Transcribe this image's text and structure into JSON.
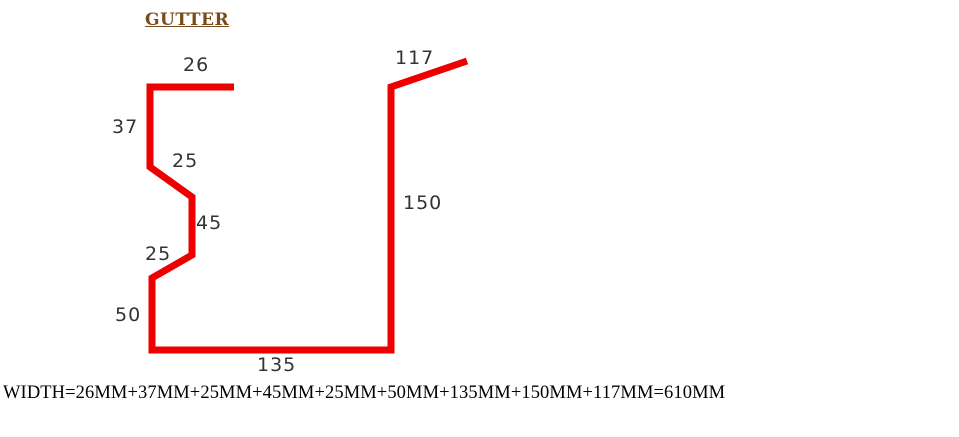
{
  "title": "GUTTER",
  "colors": {
    "profile": "#ee0000",
    "title": "#7a4a1a",
    "text": "#000000"
  },
  "dimensions": {
    "top_flange": "26",
    "upper_vertical": "37",
    "upper_slope": "25",
    "middle_vertical": "45",
    "lower_slope": "25",
    "lower_vertical": "50",
    "bottom": "135",
    "back_wall": "150",
    "back_lip": "117"
  },
  "formula": "WIDTH=26MM+37MM+25MM+45MM+25MM+50MM+135MM+150MM+117MM=610MM"
}
